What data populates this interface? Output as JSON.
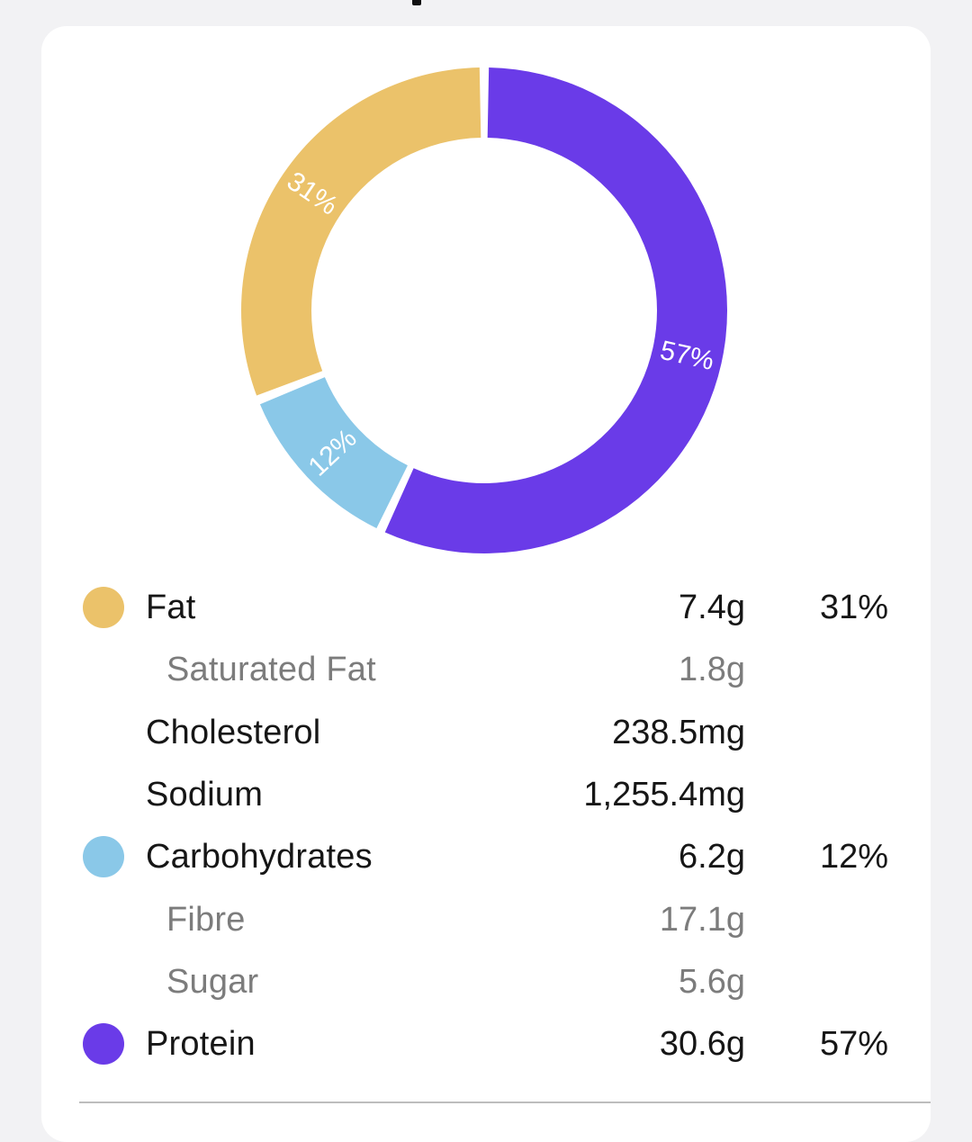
{
  "chart_data": {
    "type": "pie",
    "style": "donut",
    "slices": [
      {
        "name": "Protein",
        "value": 57,
        "label": "57%",
        "color": "#6a3be8"
      },
      {
        "name": "Carbohydrates",
        "value": 12,
        "label": "12%",
        "color": "#8ac8e8"
      },
      {
        "name": "Fat",
        "value": 31,
        "label": "31%",
        "color": "#ebc26a"
      }
    ]
  },
  "nutrients": [
    {
      "label": "Fat",
      "amount": "7.4g",
      "percent": "31%",
      "color": "#ebc26a",
      "sub": false
    },
    {
      "label": "Saturated Fat",
      "amount": "1.8g",
      "percent": "",
      "color": "",
      "sub": true
    },
    {
      "label": "Cholesterol",
      "amount": "238.5mg",
      "percent": "",
      "color": "",
      "sub": false
    },
    {
      "label": "Sodium",
      "amount": "1,255.4mg",
      "percent": "",
      "color": "",
      "sub": false
    },
    {
      "label": "Carbohydrates",
      "amount": "6.2g",
      "percent": "12%",
      "color": "#8ac8e8",
      "sub": false
    },
    {
      "label": "Fibre",
      "amount": "17.1g",
      "percent": "",
      "color": "",
      "sub": true
    },
    {
      "label": "Sugar",
      "amount": "5.6g",
      "percent": "",
      "color": "",
      "sub": true
    },
    {
      "label": "Protein",
      "amount": "30.6g",
      "percent": "57%",
      "color": "#6a3be8",
      "sub": false
    }
  ]
}
